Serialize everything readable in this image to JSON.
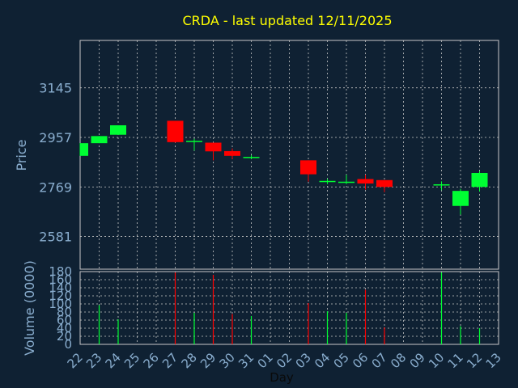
{
  "chart_data": {
    "type": "candlestick",
    "title": "CRDA - last updated 12/11/2025",
    "xlabel": "Day",
    "price_ylabel": "Price",
    "volume_ylabel": "Volume (0000)",
    "price_ticks": [
      2581,
      2769,
      2957,
      3145
    ],
    "price_range": [
      2457,
      3325
    ],
    "volume_ticks": [
      0,
      20,
      40,
      60,
      80,
      100,
      120,
      140,
      160,
      180
    ],
    "volume_range": [
      0,
      180
    ],
    "grid": true,
    "x_labels": [
      "22",
      "23",
      "24",
      "25",
      "26",
      "27",
      "28",
      "29",
      "30",
      "31",
      "01",
      "02",
      "03",
      "04",
      "05",
      "06",
      "07",
      "08",
      "09",
      "10",
      "11",
      "12",
      "13"
    ],
    "candles": [
      {
        "day": "22",
        "open": 2887,
        "high": 2935,
        "low": 2887,
        "close": 2935
      },
      {
        "day": "23",
        "open": 2935,
        "high": 2962,
        "low": 2935,
        "close": 2962
      },
      {
        "day": "24",
        "open": 2967,
        "high": 3003,
        "low": 2967,
        "close": 3003
      },
      {
        "day": "27",
        "open": 3020,
        "high": 3020,
        "low": 2937,
        "close": 2939
      },
      {
        "day": "28",
        "open": 2944,
        "high": 2952,
        "low": 2907,
        "close": 2944
      },
      {
        "day": "29",
        "open": 2937,
        "high": 2937,
        "low": 2870,
        "close": 2904
      },
      {
        "day": "30",
        "open": 2905,
        "high": 2915,
        "low": 2875,
        "close": 2887
      },
      {
        "day": "31",
        "open": 2883,
        "high": 2890,
        "low": 2875,
        "close": 2883
      },
      {
        "day": "03",
        "open": 2870,
        "high": 2870,
        "low": 2789,
        "close": 2817
      },
      {
        "day": "04",
        "open": 2792,
        "high": 2800,
        "low": 2780,
        "close": 2792
      },
      {
        "day": "05",
        "open": 2789,
        "high": 2815,
        "low": 2780,
        "close": 2789
      },
      {
        "day": "06",
        "open": 2799,
        "high": 2815,
        "low": 2759,
        "close": 2782
      },
      {
        "day": "07",
        "open": 2795,
        "high": 2795,
        "low": 2749,
        "close": 2769
      },
      {
        "day": "10",
        "open": 2779,
        "high": 2790,
        "low": 2757,
        "close": 2779
      },
      {
        "day": "11",
        "open": 2697,
        "high": 2762,
        "low": 2664,
        "close": 2754
      },
      {
        "day": "12",
        "open": 2769,
        "high": 2829,
        "low": 2752,
        "close": 2822
      }
    ],
    "volume": [
      {
        "day": "22",
        "value": 0
      },
      {
        "day": "23",
        "value": 97
      },
      {
        "day": "24",
        "value": 62
      },
      {
        "day": "27",
        "value": 178
      },
      {
        "day": "28",
        "value": 78
      },
      {
        "day": "29",
        "value": 172
      },
      {
        "day": "30",
        "value": 75
      },
      {
        "day": "31",
        "value": 70
      },
      {
        "day": "03",
        "value": 102
      },
      {
        "day": "04",
        "value": 82
      },
      {
        "day": "05",
        "value": 78
      },
      {
        "day": "06",
        "value": 135
      },
      {
        "day": "07",
        "value": 42
      },
      {
        "day": "10",
        "value": 178
      },
      {
        "day": "11",
        "value": 45
      },
      {
        "day": "12",
        "value": 40
      }
    ],
    "colors": {
      "background": "#0f2133",
      "up": "#00ff33",
      "down": "#ff0000",
      "grid": "#c8c8c8",
      "axis_text": "#8aaecf",
      "title": "#ffff00"
    }
  }
}
